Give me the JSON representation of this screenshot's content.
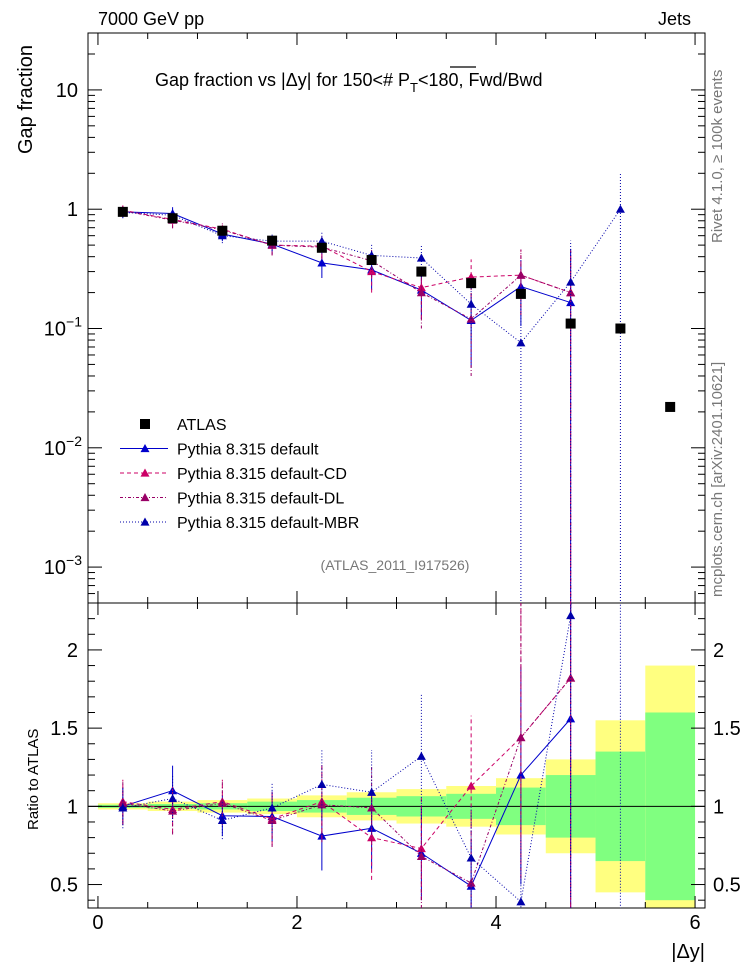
{
  "header": {
    "energy": "7000 GeV pp",
    "category": "Jets"
  },
  "side_labels": {
    "rivet": "Rivet 4.1.0, ≥ 100k events",
    "source": "mcplots.cern.ch [arXiv:2401.10621]"
  },
  "chart_data": {
    "type": "scatter",
    "title": "Gap fraction vs |Δy| for 150<# P̄_T<180, Fwd/Bwd",
    "title_parts": {
      "pre": "Gap fraction vs |",
      "delta": "Δ",
      "mid": "y| for 150<# ",
      "p": "P",
      "t": "T",
      "post": "<180, Fwd/Bwd"
    },
    "analysis_label": "(ATLAS_2011_I917526)",
    "xlabel": "|Δy|",
    "ylabel": "Gap fraction",
    "ratio_ylabel": "Ratio to ATLAS",
    "xlim": [
      -0.1,
      6.1
    ],
    "ylim": [
      0.0005,
      30
    ],
    "yscale": "log",
    "ratio_ylim": [
      0.35,
      2.3
    ],
    "x_ticks": [
      "0",
      "2",
      "4",
      "6"
    ],
    "x_tick_values": [
      0,
      2,
      4,
      6
    ],
    "y_ticks": [
      {
        "value": 0.001,
        "base": "10",
        "exp": "−3"
      },
      {
        "value": 0.01,
        "base": "10",
        "exp": "−2"
      },
      {
        "value": 0.1,
        "base": "10",
        "exp": "−1"
      },
      {
        "value": 1,
        "base": "1",
        "exp": ""
      },
      {
        "value": 10,
        "base": "10",
        "exp": ""
      }
    ],
    "ratio_y_ticks": [
      "0.5",
      "1",
      "1.5",
      "2"
    ],
    "ratio_y_tick_values": [
      0.5,
      1,
      1.5,
      2
    ],
    "bins": [
      [
        0,
        0.5
      ],
      [
        0.5,
        1
      ],
      [
        1,
        1.5
      ],
      [
        1.5,
        2
      ],
      [
        2,
        2.5
      ],
      [
        2.5,
        3
      ],
      [
        3,
        3.5
      ],
      [
        3.5,
        4
      ],
      [
        4,
        4.5
      ],
      [
        4.5,
        5
      ],
      [
        5,
        5.5
      ],
      [
        5.5,
        6
      ]
    ],
    "atlas": {
      "name": "ATLAS",
      "x": [
        0.25,
        0.75,
        1.25,
        1.75,
        2.25,
        2.75,
        3.25,
        3.75,
        4.25,
        4.75,
        5.25,
        5.75
      ],
      "y": [
        0.95,
        0.84,
        0.66,
        0.545,
        0.475,
        0.375,
        0.3,
        0.24,
        0.195,
        0.11,
        0.1,
        0.022
      ],
      "band_yellow": [
        0.02,
        0.03,
        0.04,
        0.05,
        0.07,
        0.09,
        0.11,
        0.13,
        0.18,
        0.3,
        0.55,
        0.9
      ],
      "band_green": [
        0.01,
        0.015,
        0.02,
        0.03,
        0.04,
        0.055,
        0.065,
        0.08,
        0.12,
        0.2,
        0.35,
        0.6
      ]
    },
    "series": [
      {
        "name": "Pythia 8.315 default",
        "color": "#0000cc",
        "dash": "",
        "marker": "triangle",
        "x": [
          0.25,
          0.75,
          1.25,
          1.75,
          2.25,
          2.75,
          3.25,
          3.75,
          4.25,
          4.75,
          5.25
        ],
        "y": [
          0.95,
          0.92,
          0.62,
          0.51,
          0.355,
          0.31,
          0.21,
          0.117,
          0.225,
          0.165,
          null
        ],
        "err_lo": [
          0.1,
          0.12,
          0.08,
          0.09,
          0.09,
          0.1,
          0.09,
          0.07,
          0.12,
          0.165,
          null
        ],
        "err_hi": [
          0.1,
          0.12,
          0.08,
          0.09,
          0.09,
          0.1,
          0.09,
          0.07,
          0.15,
          0.3,
          null
        ],
        "ratio": [
          1.0,
          1.1,
          0.94,
          0.935,
          0.81,
          0.86,
          0.7,
          0.49,
          1.2,
          1.56,
          null
        ],
        "ratio_err": [
          0.12,
          0.16,
          0.13,
          0.16,
          0.22,
          0.26,
          0.3,
          0.3,
          0.7,
          1.4,
          null
        ]
      },
      {
        "name": "Pythia 8.315 default-CD",
        "color": "#cc0066",
        "dash": "4,3",
        "marker": "triangle",
        "x": [
          0.25,
          0.75,
          1.25,
          1.75,
          2.25,
          2.75,
          3.25,
          3.75,
          4.25,
          4.75,
          5.25
        ],
        "y": [
          0.98,
          0.82,
          0.68,
          0.5,
          0.49,
          0.3,
          0.22,
          0.27,
          0.28,
          0.2,
          null
        ],
        "err_lo": [
          0.11,
          0.12,
          0.09,
          0.09,
          0.1,
          0.1,
          0.1,
          0.11,
          0.15,
          0.2,
          null
        ],
        "err_hi": [
          0.11,
          0.12,
          0.09,
          0.09,
          0.1,
          0.1,
          0.1,
          0.11,
          0.18,
          0.25,
          null
        ],
        "ratio": [
          1.03,
          0.98,
          1.03,
          0.92,
          1.03,
          0.8,
          0.73,
          1.13,
          1.44,
          1.82,
          null
        ],
        "ratio_err": [
          0.14,
          0.15,
          0.14,
          0.17,
          0.24,
          0.27,
          0.33,
          0.45,
          0.9,
          1.6,
          null
        ]
      },
      {
        "name": "Pythia 8.315 default-DL",
        "color": "#990066",
        "dash": "3,2,1,2",
        "marker": "triangle",
        "x": [
          0.25,
          0.75,
          1.25,
          1.75,
          2.25,
          2.75,
          3.25,
          3.75,
          4.25,
          4.75,
          5.25
        ],
        "y": [
          0.97,
          0.81,
          0.67,
          0.5,
          0.48,
          0.37,
          0.2,
          0.12,
          0.28,
          0.2,
          null
        ],
        "err_lo": [
          0.11,
          0.12,
          0.09,
          0.09,
          0.1,
          0.1,
          0.1,
          0.08,
          0.15,
          0.2,
          null
        ],
        "err_hi": [
          0.11,
          0.12,
          0.09,
          0.09,
          0.1,
          0.1,
          0.1,
          0.08,
          0.18,
          0.25,
          null
        ],
        "ratio": [
          1.02,
          0.97,
          1.02,
          0.91,
          1.01,
          0.99,
          0.68,
          0.51,
          1.44,
          1.82,
          null
        ],
        "ratio_err": [
          0.14,
          0.15,
          0.14,
          0.17,
          0.24,
          0.27,
          0.33,
          0.45,
          0.9,
          1.6,
          null
        ]
      },
      {
        "name": "Pythia 8.315 default-MBR",
        "color": "#0000aa",
        "dash": "1,2",
        "marker": "triangle",
        "x": [
          0.25,
          0.75,
          1.25,
          1.75,
          2.25,
          2.75,
          3.25,
          3.75,
          4.25,
          4.75,
          5.25
        ],
        "y": [
          0.94,
          0.89,
          0.6,
          0.54,
          0.54,
          0.41,
          0.39,
          0.16,
          0.076,
          0.245,
          1.0
        ],
        "err_lo": [
          0.1,
          0.12,
          0.08,
          0.09,
          0.1,
          0.1,
          0.12,
          0.08,
          0.076,
          0.245,
          1.0
        ],
        "err_hi": [
          0.1,
          0.12,
          0.08,
          0.09,
          0.1,
          0.1,
          0.12,
          0.08,
          0.15,
          0.3,
          1.0
        ],
        "ratio": [
          0.99,
          1.05,
          0.91,
          0.99,
          1.14,
          1.09,
          1.32,
          0.67,
          0.39,
          2.22,
          10.0
        ],
        "ratio_err": [
          0.13,
          0.15,
          0.12,
          0.16,
          0.23,
          0.27,
          0.4,
          0.33,
          0.4,
          1.8,
          10.0
        ]
      }
    ]
  }
}
